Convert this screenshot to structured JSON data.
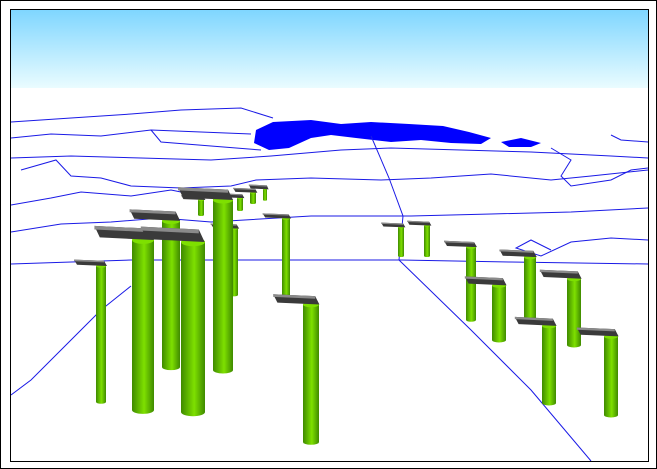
{
  "viewport": {
    "sky_top_color": "#7fd6ff",
    "sky_bottom_color": "#eafcff",
    "ground_color": "#ffffff",
    "boundary_color": "#1a1ae6",
    "water_color": "#0000ff",
    "bar_color": "#7ee000",
    "bar_shade_color": "#3f8a00",
    "flag_color": "#3a3a3a",
    "flag_shade_color": "#8a8a8a"
  },
  "bars": [
    {
      "id": "bar-01",
      "value": 0.35
    },
    {
      "id": "bar-02",
      "value": 0.36
    },
    {
      "id": "bar-03",
      "value": 0.32
    },
    {
      "id": "bar-04",
      "value": 0.3
    },
    {
      "id": "bar-05",
      "value": 0.34
    },
    {
      "id": "bar-06",
      "value": 0.4
    },
    {
      "id": "bar-07",
      "value": 0.38
    },
    {
      "id": "bar-08",
      "value": 0.62
    },
    {
      "id": "bar-09",
      "value": 0.63
    },
    {
      "id": "bar-10",
      "value": 0.68
    },
    {
      "id": "bar-11",
      "value": 0.62
    },
    {
      "id": "bar-12",
      "value": 0.7
    },
    {
      "id": "bar-13",
      "value": 0.85
    },
    {
      "id": "bar-14",
      "value": 0.95
    },
    {
      "id": "bar-15",
      "value": 0.55
    },
    {
      "id": "bar-16",
      "value": 0.6
    },
    {
      "id": "bar-17",
      "value": 0.45
    },
    {
      "id": "bar-18",
      "value": 0.55
    },
    {
      "id": "bar-19",
      "value": 0.58
    },
    {
      "id": "bar-20",
      "value": 0.6
    },
    {
      "id": "bar-21",
      "value": 0.55
    },
    {
      "id": "bar-22",
      "value": 0.62
    }
  ]
}
